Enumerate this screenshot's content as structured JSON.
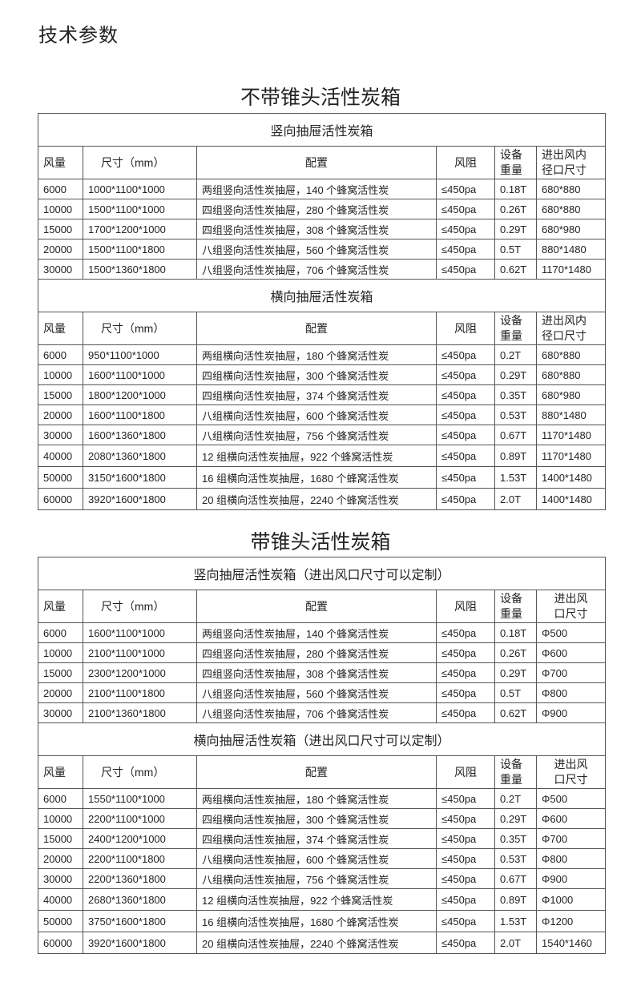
{
  "page_title": "技术参数",
  "columns": [
    "风量",
    "尺寸（mm）",
    "配置",
    "风阻",
    "设备重量",
    "进出风内径口尺寸"
  ],
  "sections": [
    {
      "title": "不带锥头活性炭箱",
      "tables": [
        {
          "subtitle": "竖向抽屉活性炭箱",
          "header": [
            "风量",
            "尺寸（mm）",
            "配置",
            "风阻",
            [
              "设备",
              "重量"
            ],
            [
              "进出风内",
              "径口尺寸"
            ]
          ],
          "rows": [
            [
              "6000",
              "1000*1100*1000",
              "两组竖向活性炭抽屉，140 个蜂窝活性炭",
              "≤450pa",
              "0.18T",
              "680*880"
            ],
            [
              "10000",
              "1500*1100*1000",
              "四组竖向活性炭抽屉，280 个蜂窝活性炭",
              "≤450pa",
              "0.26T",
              "680*880"
            ],
            [
              "15000",
              "1700*1200*1000",
              "四组竖向活性炭抽屉，308 个蜂窝活性炭",
              "≤450pa",
              "0.29T",
              "680*980"
            ],
            [
              "20000",
              "1500*1100*1800",
              "八组竖向活性炭抽屉，560 个蜂窝活性炭",
              "≤450pa",
              "0.5T",
              "880*1480"
            ],
            [
              "30000",
              "1500*1360*1800",
              "八组竖向活性炭抽屉，706 个蜂窝活性炭",
              "≤450pa",
              "0.62T",
              "1170*1480"
            ]
          ]
        },
        {
          "subtitle": "横向抽屉活性炭箱",
          "header": [
            "风量",
            "尺寸（mm）",
            "配置",
            "风阻",
            [
              "设备",
              "重量"
            ],
            [
              "进出风内",
              "径口尺寸"
            ]
          ],
          "rows": [
            [
              "6000",
              "950*1100*1000",
              "两组横向活性炭抽屉，180 个蜂窝活性炭",
              "≤450pa",
              "0.2T",
              "680*880"
            ],
            [
              "10000",
              "1600*1100*1000",
              "四组横向活性炭抽屉，300 个蜂窝活性炭",
              "≤450pa",
              "0.29T",
              "680*880"
            ],
            [
              "15000",
              "1800*1200*1000",
              "四组横向活性炭抽屉，374 个蜂窝活性炭",
              "≤450pa",
              "0.35T",
              "680*980"
            ],
            [
              "20000",
              "1600*1100*1800",
              "八组横向活性炭抽屉，600 个蜂窝活性炭",
              "≤450pa",
              "0.53T",
              "880*1480"
            ],
            [
              "30000",
              "1600*1360*1800",
              "八组横向活性炭抽屉，756 个蜂窝活性炭",
              "≤450pa",
              "0.67T",
              "1170*1480"
            ],
            [
              "40000",
              "2080*1360*1800",
              "12 组横向活性炭抽屉，922 个蜂窝活性炭",
              "≤450pa",
              "0.89T",
              "1170*1480"
            ],
            [
              "50000",
              "3150*1600*1800",
              "16 组横向活性炭抽屉，1680 个蜂窝活性炭",
              "≤450pa",
              "1.53T",
              "1400*1480"
            ],
            [
              "60000",
              "3920*1600*1800",
              "20 组横向活性炭抽屉，2240 个蜂窝活性炭",
              "≤450pa",
              "2.0T",
              "1400*1480"
            ]
          ]
        }
      ]
    },
    {
      "title": "带锥头活性炭箱",
      "tables": [
        {
          "subtitle": "竖向抽屉活性炭箱（进出风口尺寸可以定制）",
          "header": [
            "风量",
            "尺寸（mm）",
            "配置",
            "风阻",
            [
              "设备",
              "重量"
            ],
            [
              "进出风",
              "口尺寸"
            ]
          ],
          "rows": [
            [
              "6000",
              "1600*1100*1000",
              "两组竖向活性炭抽屉，140 个蜂窝活性炭",
              "≤450pa",
              "0.18T",
              "Φ500"
            ],
            [
              "10000",
              "2100*1100*1000",
              "四组竖向活性炭抽屉，280 个蜂窝活性炭",
              "≤450pa",
              "0.26T",
              "Φ600"
            ],
            [
              "15000",
              "2300*1200*1000",
              "四组竖向活性炭抽屉，308 个蜂窝活性炭",
              "≤450pa",
              "0.29T",
              "Φ700"
            ],
            [
              "20000",
              "2100*1100*1800",
              "八组竖向活性炭抽屉，560 个蜂窝活性炭",
              "≤450pa",
              "0.5T",
              "Φ800"
            ],
            [
              "30000",
              "2100*1360*1800",
              "八组竖向活性炭抽屉，706 个蜂窝活性炭",
              "≤450pa",
              "0.62T",
              "Φ900"
            ]
          ]
        },
        {
          "subtitle": "横向抽屉活性炭箱（进出风口尺寸可以定制）",
          "header": [
            "风量",
            "尺寸（mm）",
            "配置",
            "风阻",
            [
              "设备",
              "重量"
            ],
            [
              "进出风",
              "口尺寸"
            ]
          ],
          "rows": [
            [
              "6000",
              "1550*1100*1000",
              "两组横向活性炭抽屉，180 个蜂窝活性炭",
              "≤450pa",
              "0.2T",
              "Φ500"
            ],
            [
              "10000",
              "2200*1100*1000",
              "四组横向活性炭抽屉，300 个蜂窝活性炭",
              "≤450pa",
              "0.29T",
              "Φ600"
            ],
            [
              "15000",
              "2400*1200*1000",
              "四组横向活性炭抽屉，374 个蜂窝活性炭",
              "≤450pa",
              "0.35T",
              "Φ700"
            ],
            [
              "20000",
              "2200*1100*1800",
              "八组横向活性炭抽屉，600 个蜂窝活性炭",
              "≤450pa",
              "0.53T",
              "Φ800"
            ],
            [
              "30000",
              "2200*1360*1800",
              "八组横向活性炭抽屉，756 个蜂窝活性炭",
              "≤450pa",
              "0.67T",
              "Φ900"
            ],
            [
              "40000",
              "2680*1360*1800",
              "12 组横向活性炭抽屉，922 个蜂窝活性炭",
              "≤450pa",
              "0.89T",
              "Φ1000"
            ],
            [
              "50000",
              "3750*1600*1800",
              "16 组横向活性炭抽屉，1680 个蜂窝活性炭",
              "≤450pa",
              "1.53T",
              "Φ1200"
            ],
            [
              "60000",
              "3920*1600*1800",
              "20 组横向活性炭抽屉，2240 个蜂窝活性炭",
              "≤450pa",
              "2.0T",
              "1540*1460"
            ]
          ]
        }
      ]
    }
  ]
}
